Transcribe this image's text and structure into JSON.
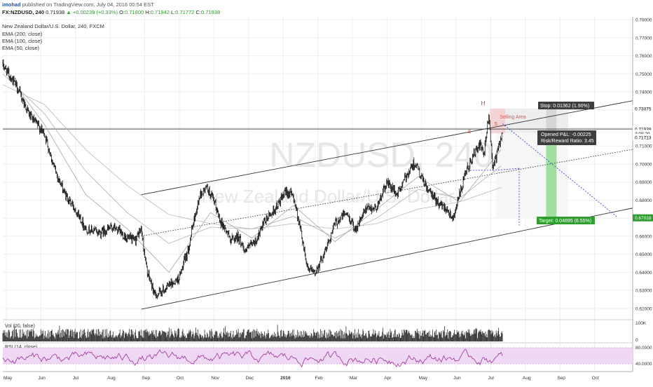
{
  "header": {
    "author": "imohad",
    "published": "published on TradingView.com, July 04, 2016 00:54 EST",
    "symbol": "FX:NZDUSD, 240",
    "last": "0.71938",
    "change": "▲ +0.00239 (+0.33%)",
    "o_label": "O:",
    "o": "0.71800",
    "h_label": "H:",
    "h": "0.71942",
    "l_label": "L:",
    "l": "0.71772",
    "c_label": "C:",
    "c": "0.71938"
  },
  "legend": {
    "title": "New Zealand Dollar/U.S. Dollar, 240, FXCM",
    "ema200": "EMA (200, close)",
    "ema100": "EMA (100, close)",
    "ema50": "EMA (50, close)"
  },
  "watermark": {
    "symbol": "NZDUSD, 240",
    "name": "New Zealand Dollar/U.S. Dollar"
  },
  "annotations": {
    "head": "H",
    "left_shoulder": "S",
    "right_shoulder": "S",
    "selling_area": "Selling Area",
    "stop": "Stop: 0.01362 (1.90%)",
    "pnl": "Opened P&L: -0.00225",
    "rr": "Risk/Reward Ratio: 3.45",
    "target": "Target: 0.04695 (6.55%)"
  },
  "price_badges": {
    "last": "0.71938",
    "countdown": "3:08:29",
    "entry": "0.71713",
    "stop": "0.73075",
    "target": "0.67018"
  },
  "volume": {
    "label": "Vol (20, false)",
    "tick_top": "100K",
    "tick_bottom": "0"
  },
  "rsi": {
    "label": "RSI (14, close)",
    "upper": "80.0000",
    "lower": "40.0000"
  },
  "colors": {
    "candle": "#1a1a1a",
    "accent_green": "#2a9d2a",
    "stop_box": "#d6d6d6",
    "target_box": "#9fe09f",
    "rsi_line": "#9b2f9b",
    "rsi_band": "#eed8f3",
    "projection": "#3b45d6",
    "head_text": "#d33b3b"
  },
  "chart_data": {
    "type": "candlestick",
    "title": "New Zealand Dollar/U.S. Dollar, 240, FXCM",
    "x_ticks": [
      "May",
      "Jun",
      "Jul",
      "Aug",
      "Sep",
      "Oct",
      "Nov",
      "Dec",
      "2016",
      "Feb",
      "Mar",
      "Apr",
      "May",
      "Jun",
      "Jul",
      "Aug",
      "Sep",
      "Oct"
    ],
    "y_ticks": [
      "0.78000",
      "0.77000",
      "0.76000",
      "0.75000",
      "0.74000",
      "0.73000",
      "0.72000",
      "0.71000",
      "0.70000",
      "0.69000",
      "0.68000",
      "0.67000",
      "0.66000",
      "0.65000",
      "0.64000",
      "0.63000",
      "0.62000"
    ],
    "ylim": [
      0.6141,
      0.7816
    ],
    "price_path": [
      {
        "t": 0.0,
        "p": 0.755
      },
      {
        "t": 2.0,
        "p": 0.743
      },
      {
        "t": 4.0,
        "p": 0.726
      },
      {
        "t": 6.0,
        "p": 0.717
      },
      {
        "t": 7.5,
        "p": 0.697
      },
      {
        "t": 9.0,
        "p": 0.683
      },
      {
        "t": 10.5,
        "p": 0.675
      },
      {
        "t": 12.0,
        "p": 0.664
      },
      {
        "t": 14.0,
        "p": 0.662
      },
      {
        "t": 16.0,
        "p": 0.665
      },
      {
        "t": 18.0,
        "p": 0.659
      },
      {
        "t": 19.0,
        "p": 0.657
      },
      {
        "t": 20.0,
        "p": 0.664
      },
      {
        "t": 20.8,
        "p": 0.641
      },
      {
        "t": 22.0,
        "p": 0.627
      },
      {
        "t": 23.5,
        "p": 0.631
      },
      {
        "t": 25.5,
        "p": 0.637
      },
      {
        "t": 26.8,
        "p": 0.653
      },
      {
        "t": 27.5,
        "p": 0.667
      },
      {
        "t": 28.5,
        "p": 0.683
      },
      {
        "t": 29.5,
        "p": 0.687
      },
      {
        "t": 30.5,
        "p": 0.679
      },
      {
        "t": 31.5,
        "p": 0.668
      },
      {
        "t": 33.0,
        "p": 0.658
      },
      {
        "t": 34.0,
        "p": 0.66
      },
      {
        "t": 35.0,
        "p": 0.652
      },
      {
        "t": 36.5,
        "p": 0.657
      },
      {
        "t": 38.0,
        "p": 0.669
      },
      {
        "t": 39.5,
        "p": 0.676
      },
      {
        "t": 41.0,
        "p": 0.685
      },
      {
        "t": 42.0,
        "p": 0.682
      },
      {
        "t": 43.0,
        "p": 0.664
      },
      {
        "t": 44.0,
        "p": 0.643
      },
      {
        "t": 45.0,
        "p": 0.639
      },
      {
        "t": 46.5,
        "p": 0.651
      },
      {
        "t": 48.0,
        "p": 0.667
      },
      {
        "t": 49.5,
        "p": 0.673
      },
      {
        "t": 51.0,
        "p": 0.664
      },
      {
        "t": 52.5,
        "p": 0.675
      },
      {
        "t": 54.0,
        "p": 0.676
      },
      {
        "t": 55.5,
        "p": 0.69
      },
      {
        "t": 57.0,
        "p": 0.683
      },
      {
        "t": 58.5,
        "p": 0.695
      },
      {
        "t": 59.5,
        "p": 0.701
      },
      {
        "t": 60.5,
        "p": 0.692
      },
      {
        "t": 61.5,
        "p": 0.685
      },
      {
        "t": 63.0,
        "p": 0.678
      },
      {
        "t": 64.0,
        "p": 0.676
      },
      {
        "t": 65.0,
        "p": 0.67
      },
      {
        "t": 66.0,
        "p": 0.683
      },
      {
        "t": 67.0,
        "p": 0.696
      },
      {
        "t": 68.0,
        "p": 0.705
      },
      {
        "t": 69.0,
        "p": 0.711
      },
      {
        "t": 69.5,
        "p": 0.704
      },
      {
        "t": 70.2,
        "p": 0.727
      },
      {
        "t": 70.8,
        "p": 0.698
      },
      {
        "t": 71.5,
        "p": 0.707
      },
      {
        "t": 72.2,
        "p": 0.719
      }
    ],
    "ema200": [
      {
        "t": 0,
        "p": 0.744
      },
      {
        "t": 6,
        "p": 0.733
      },
      {
        "t": 12,
        "p": 0.708
      },
      {
        "t": 18,
        "p": 0.688
      },
      {
        "t": 24,
        "p": 0.672
      },
      {
        "t": 30,
        "p": 0.667
      },
      {
        "t": 36,
        "p": 0.664
      },
      {
        "t": 42,
        "p": 0.667
      },
      {
        "t": 48,
        "p": 0.664
      },
      {
        "t": 54,
        "p": 0.667
      },
      {
        "t": 60,
        "p": 0.675
      },
      {
        "t": 66,
        "p": 0.679
      },
      {
        "t": 72,
        "p": 0.687
      }
    ],
    "ema100": [
      {
        "t": 0,
        "p": 0.75
      },
      {
        "t": 6,
        "p": 0.728
      },
      {
        "t": 12,
        "p": 0.696
      },
      {
        "t": 18,
        "p": 0.673
      },
      {
        "t": 24,
        "p": 0.656
      },
      {
        "t": 30,
        "p": 0.665
      },
      {
        "t": 36,
        "p": 0.664
      },
      {
        "t": 42,
        "p": 0.671
      },
      {
        "t": 48,
        "p": 0.659
      },
      {
        "t": 54,
        "p": 0.67
      },
      {
        "t": 60,
        "p": 0.686
      },
      {
        "t": 66,
        "p": 0.681
      },
      {
        "t": 72,
        "p": 0.699
      }
    ],
    "ema50": [
      {
        "t": 0,
        "p": 0.753
      },
      {
        "t": 6,
        "p": 0.722
      },
      {
        "t": 12,
        "p": 0.683
      },
      {
        "t": 18,
        "p": 0.664
      },
      {
        "t": 24,
        "p": 0.64
      },
      {
        "t": 30,
        "p": 0.673
      },
      {
        "t": 36,
        "p": 0.659
      },
      {
        "t": 42,
        "p": 0.677
      },
      {
        "t": 48,
        "p": 0.657
      },
      {
        "t": 54,
        "p": 0.675
      },
      {
        "t": 60,
        "p": 0.693
      },
      {
        "t": 66,
        "p": 0.679
      },
      {
        "t": 72,
        "p": 0.708
      }
    ],
    "trendlines": [
      {
        "name": "channel-upper",
        "style": "solid",
        "t1": 20.0,
        "p1": 0.683,
        "t2": 91.0,
        "p2": 0.7351
      },
      {
        "name": "channel-lower",
        "style": "solid",
        "t1": 20.0,
        "p1": 0.6195,
        "t2": 91.0,
        "p2": 0.6756
      },
      {
        "name": "channel-mid",
        "style": "dotted",
        "t1": 20.0,
        "p1": 0.6601,
        "t2": 91.0,
        "p2": 0.7081
      },
      {
        "name": "horizontal-resistance",
        "style": "solid",
        "t1": 0.0,
        "p1": 0.7194,
        "t2": 91.0,
        "p2": 0.7194
      },
      {
        "name": "projection",
        "style": "dashed",
        "t1": 72.2,
        "p1": 0.7224,
        "t2": 88.8,
        "p2": 0.6705
      }
    ],
    "neckline": [
      {
        "t": 67.5,
        "p": 0.6965
      },
      {
        "t": 71.3,
        "p": 0.6966
      },
      {
        "t": 74.6,
        "p": 0.6976
      }
    ],
    "target_marker": {
      "t": 74.6,
      "p1": 0.6976,
      "p2": 0.666
    },
    "position": {
      "t1": 71.3,
      "t2": 81.7,
      "entry": 0.71713,
      "stop": 0.73075,
      "target": 0.67018
    },
    "volume_band": {
      "t1": 0.0,
      "t2": 72.2
    }
  }
}
